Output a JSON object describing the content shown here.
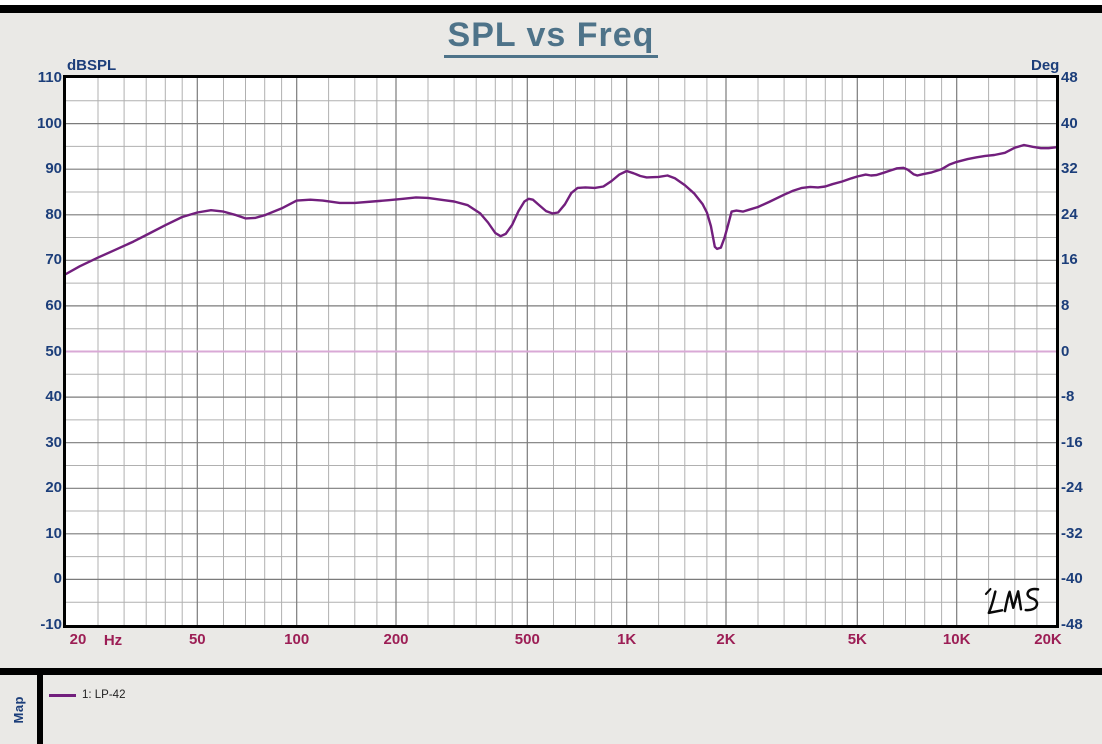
{
  "header": {
    "title": "SPL vs Freq"
  },
  "footer": {
    "map_label": "Map"
  },
  "legend": {
    "items": [
      {
        "label": "1: LP-42",
        "color": "#721f7d"
      }
    ]
  },
  "signature": "LMS",
  "colors": {
    "background": "#eae9e6",
    "plot_background": "#ffffff",
    "frame": "#000000",
    "grid_major": "#7b7b7b",
    "grid_minor": "#b0b0b0",
    "title": "#4e7389",
    "y_axis_labels": "#1c3e7a",
    "x_axis_labels": "#9c1e55",
    "spl_curve": "#721f7d",
    "phase_line": "#d9a9d6",
    "legend_text": "#222222",
    "signature_ink": "#0a0a0a"
  },
  "chart_data": {
    "type": "line",
    "title": "SPL vs Freq",
    "x_axis": {
      "scale": "log",
      "unit": "Hz",
      "range": [
        20,
        20000
      ],
      "ticks": [
        {
          "f": 20,
          "label": "20"
        },
        {
          "f": 50,
          "label": "50"
        },
        {
          "f": 100,
          "label": "100"
        },
        {
          "f": 200,
          "label": "200"
        },
        {
          "f": 500,
          "label": "500"
        },
        {
          "f": 1000,
          "label": "1K"
        },
        {
          "f": 2000,
          "label": "2K"
        },
        {
          "f": 5000,
          "label": "5K"
        },
        {
          "f": 10000,
          "label": "10K"
        },
        {
          "f": 20000,
          "label": "20K"
        }
      ],
      "major_gridlines": [
        50,
        100,
        200,
        500,
        1000,
        2000,
        5000,
        10000
      ],
      "minor_multipliers": [
        1.25,
        1.5,
        1.75,
        2.5,
        3,
        3.5,
        4,
        4.5,
        6,
        7,
        8,
        9
      ]
    },
    "y_left": {
      "label": "dBSPL",
      "range": [
        -10,
        110
      ],
      "major_step": 10,
      "minor_step": 5,
      "ticks": [
        110,
        100,
        90,
        80,
        70,
        60,
        50,
        40,
        30,
        20,
        10,
        0,
        -10
      ]
    },
    "y_right": {
      "label": "Deg",
      "range": [
        -48,
        48
      ],
      "major_step": 8,
      "ticks": [
        48,
        40,
        32,
        24,
        16,
        8,
        0,
        -8,
        -16,
        -24,
        -32,
        -40,
        -48
      ]
    },
    "grid": true,
    "legend_position": "bottom-left",
    "series": [
      {
        "name": "1: LP-42",
        "axis": "left",
        "color": "#721f7d",
        "points": [
          [
            20,
            67
          ],
          [
            22,
            68.7
          ],
          [
            25,
            70.6
          ],
          [
            28,
            72.2
          ],
          [
            32,
            74.1
          ],
          [
            36,
            76
          ],
          [
            40,
            77.7
          ],
          [
            45,
            79.5
          ],
          [
            50,
            80.5
          ],
          [
            55,
            81
          ],
          [
            60,
            80.7
          ],
          [
            65,
            80
          ],
          [
            70,
            79.2
          ],
          [
            75,
            79.3
          ],
          [
            80,
            79.9
          ],
          [
            90,
            81.4
          ],
          [
            100,
            83.1
          ],
          [
            110,
            83.3
          ],
          [
            120,
            83.1
          ],
          [
            135,
            82.6
          ],
          [
            150,
            82.6
          ],
          [
            170,
            82.9
          ],
          [
            190,
            83.2
          ],
          [
            210,
            83.5
          ],
          [
            230,
            83.8
          ],
          [
            250,
            83.7
          ],
          [
            280,
            83.2
          ],
          [
            300,
            82.9
          ],
          [
            330,
            82.1
          ],
          [
            360,
            80.3
          ],
          [
            380,
            78.3
          ],
          [
            400,
            76
          ],
          [
            415,
            75.3
          ],
          [
            430,
            75.8
          ],
          [
            450,
            77.8
          ],
          [
            470,
            80.8
          ],
          [
            490,
            82.9
          ],
          [
            505,
            83.5
          ],
          [
            520,
            83.3
          ],
          [
            545,
            82
          ],
          [
            570,
            80.8
          ],
          [
            595,
            80.3
          ],
          [
            620,
            80.5
          ],
          [
            650,
            82.3
          ],
          [
            680,
            84.8
          ],
          [
            710,
            85.9
          ],
          [
            750,
            86
          ],
          [
            800,
            85.9
          ],
          [
            850,
            86.2
          ],
          [
            900,
            87.4
          ],
          [
            950,
            88.8
          ],
          [
            1000,
            89.6
          ],
          [
            1050,
            89.1
          ],
          [
            1100,
            88.5
          ],
          [
            1150,
            88.2
          ],
          [
            1250,
            88.3
          ],
          [
            1330,
            88.6
          ],
          [
            1400,
            88
          ],
          [
            1500,
            86.5
          ],
          [
            1600,
            84.7
          ],
          [
            1700,
            82.3
          ],
          [
            1750,
            80.5
          ],
          [
            1800,
            77.5
          ],
          [
            1850,
            73
          ],
          [
            1880,
            72.5
          ],
          [
            1930,
            72.8
          ],
          [
            1980,
            75
          ],
          [
            2030,
            77.8
          ],
          [
            2080,
            80.7
          ],
          [
            2150,
            80.9
          ],
          [
            2250,
            80.7
          ],
          [
            2350,
            81.1
          ],
          [
            2500,
            81.7
          ],
          [
            2700,
            82.8
          ],
          [
            3000,
            84.4
          ],
          [
            3200,
            85.3
          ],
          [
            3400,
            85.9
          ],
          [
            3600,
            86.1
          ],
          [
            3800,
            86
          ],
          [
            4000,
            86.2
          ],
          [
            4200,
            86.7
          ],
          [
            4500,
            87.3
          ],
          [
            4800,
            88
          ],
          [
            5000,
            88.4
          ],
          [
            5300,
            88.8
          ],
          [
            5500,
            88.6
          ],
          [
            5700,
            88.7
          ],
          [
            6000,
            89.2
          ],
          [
            6300,
            89.7
          ],
          [
            6600,
            90.2
          ],
          [
            6900,
            90.3
          ],
          [
            7100,
            89.9
          ],
          [
            7400,
            88.9
          ],
          [
            7600,
            88.6
          ],
          [
            7900,
            88.9
          ],
          [
            8400,
            89.3
          ],
          [
            9000,
            90
          ],
          [
            9500,
            91
          ],
          [
            10000,
            91.6
          ],
          [
            10800,
            92.2
          ],
          [
            11500,
            92.6
          ],
          [
            12200,
            92.9
          ],
          [
            13000,
            93.1
          ],
          [
            14000,
            93.6
          ],
          [
            15000,
            94.7
          ],
          [
            16000,
            95.3
          ],
          [
            17000,
            94.9
          ],
          [
            18000,
            94.6
          ],
          [
            19000,
            94.6
          ],
          [
            20000,
            94.8
          ]
        ]
      },
      {
        "name": "phase-reference",
        "axis": "right",
        "color": "#d9a9d6",
        "points": [
          [
            20,
            0
          ],
          [
            20000,
            0
          ]
        ]
      }
    ]
  }
}
